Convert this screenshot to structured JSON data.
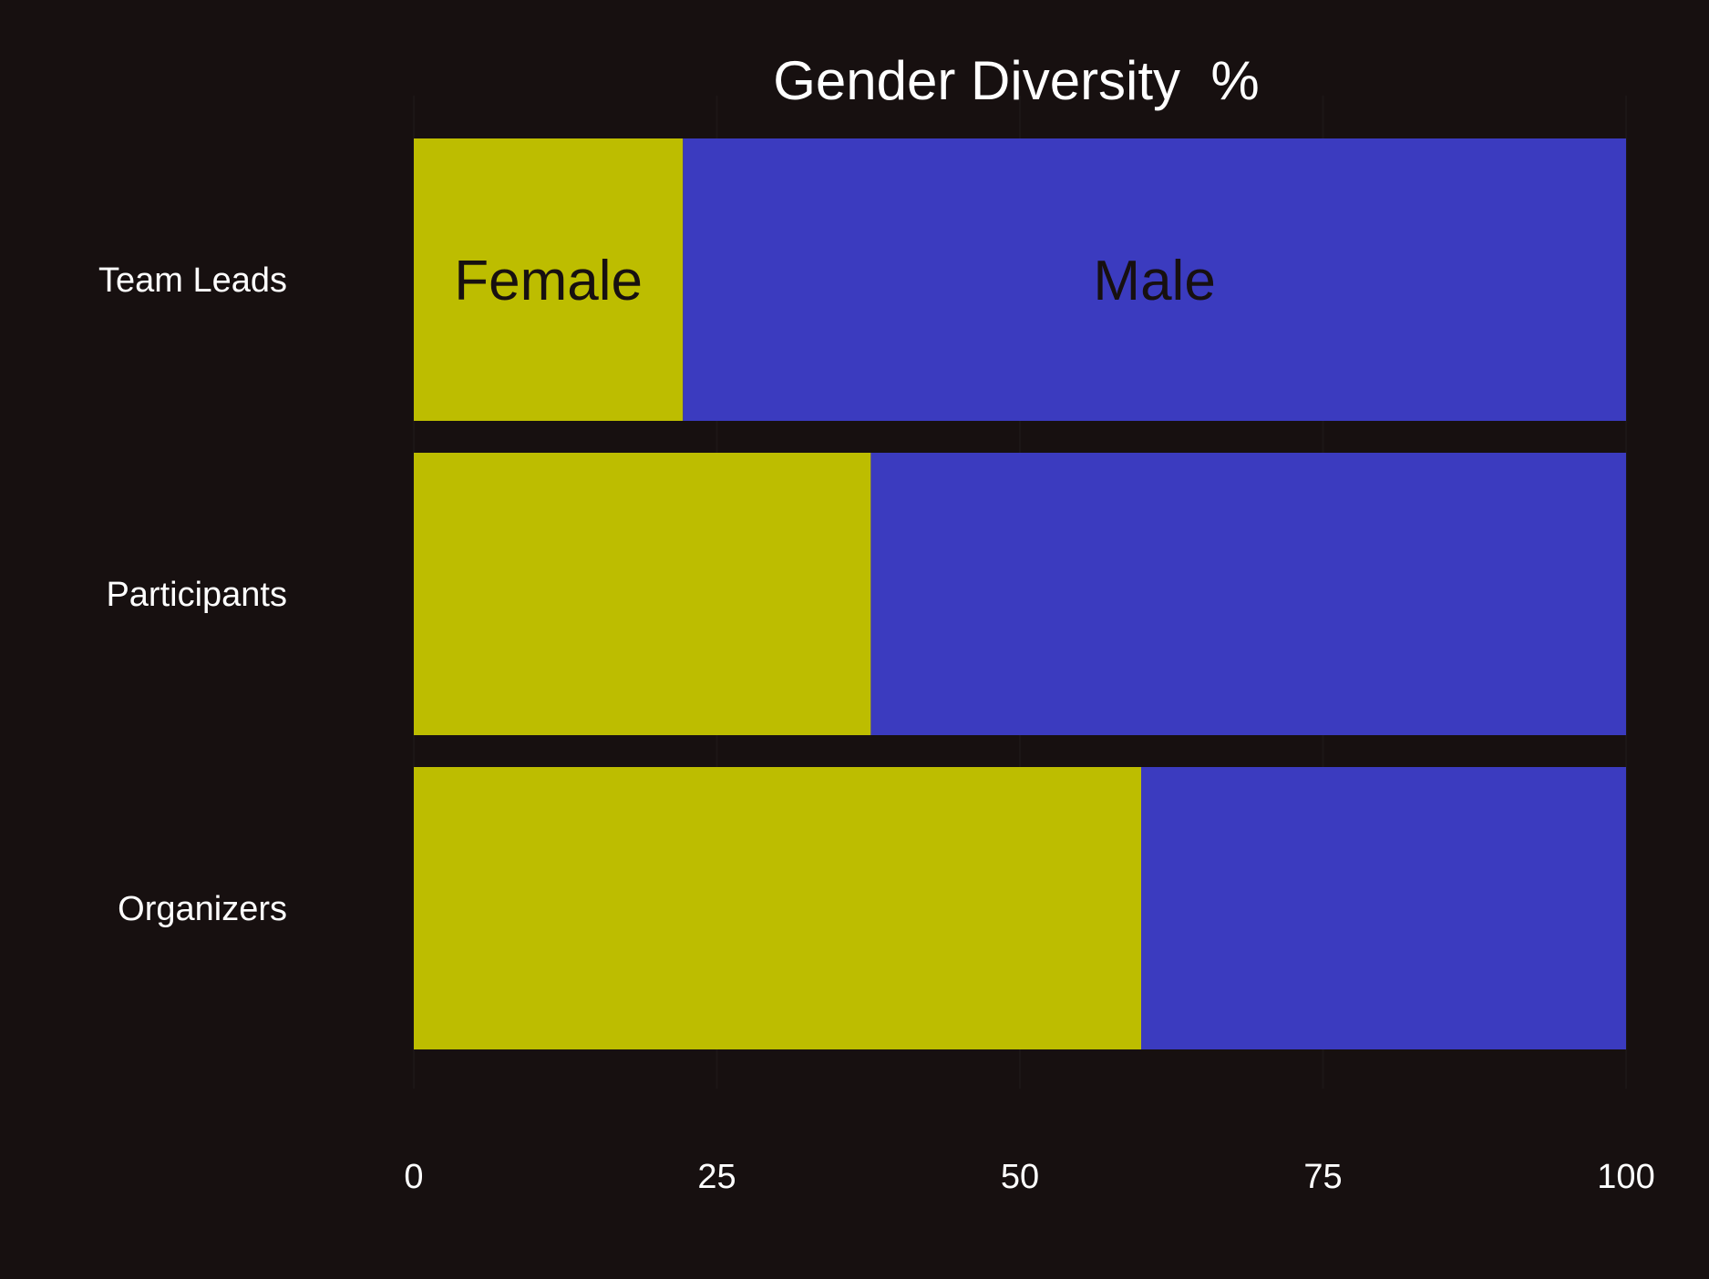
{
  "chart_data": {
    "type": "bar",
    "orientation": "horizontal",
    "stacked": true,
    "title": "Gender Diversity  %",
    "categories": [
      "Team Leads",
      "Participants",
      "Organizers"
    ],
    "series": [
      {
        "name": "Female",
        "color": "#bdbd00",
        "values": [
          22.2,
          37.7,
          60.0
        ]
      },
      {
        "name": "Male",
        "color": "#3b3bbf",
        "values": [
          77.8,
          62.3,
          40.0
        ]
      }
    ],
    "xlim": [
      0,
      100
    ],
    "xticks": [
      0,
      25,
      50,
      75,
      100
    ],
    "xtick_labels": [
      "0",
      "25",
      "50",
      "75",
      "100"
    ],
    "grid": "vertical",
    "legend": "inline labels on first bar"
  },
  "colors": {
    "background": "#171010",
    "text": "#ffffff",
    "segment_label": "#171010"
  }
}
